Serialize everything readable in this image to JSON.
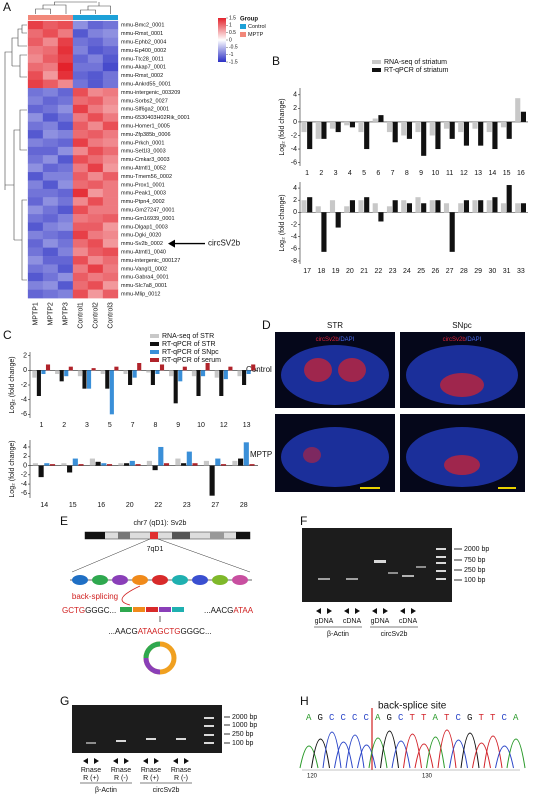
{
  "panel_labels": [
    "A",
    "B",
    "C",
    "D",
    "E",
    "F",
    "G",
    "H"
  ],
  "chart_data": [
    {
      "type": "heatmap",
      "categories": [
        "MPTP1",
        "MPTP2",
        "MPTP3",
        "Control1",
        "Control2",
        "Control3"
      ],
      "column_groups": [
        "MPTP",
        "MPTP",
        "MPTP",
        "Control",
        "Control",
        "Control"
      ],
      "rows": [
        "mmu-Bmc2_0001",
        "mmu-Rmst_0001",
        "mmu-Ephb2_0004",
        "mmu-Ep400_0002",
        "mmu-Ttc28_0011",
        "mmu-Akap7_0001",
        "mmu-Rmst_0002",
        "mmu-Ankrd55_0001",
        "mmu-intergenic_003209",
        "mmu-Sorbs2_0027",
        "mmu-Slf6ga2_0001",
        "mmu-6530403H02Rik_0001",
        "mmu-Homer1_0005",
        "mmu-Zfp385b_0006",
        "mmu-Prkch_0001",
        "mmu-Sel1l3_0003",
        "mmu-Cmkar3_0003",
        "mmu-Atmtl1_0052",
        "mmu-Tmem56_0002",
        "mmu-Prox1_0001",
        "mmu-Peak1_0003",
        "mmu-Ptpn4_0002",
        "mmu-Gm27247_0001",
        "mmu-Gm16939_0001",
        "mmu-Dlgap1_0003",
        "mmu-Dgki_0020",
        "mmu-Sv2b_0002",
        "mmu-Atmtl1_0040",
        "mmu-intergenic_000127",
        "mmu-Vangl1_0002",
        "mmu-Gabra4_0001",
        "mmu-Slc7a8_0001",
        "mmu-Mlip_0012"
      ],
      "values": [
        [
          1.3,
          1.1,
          1.2,
          -0.8,
          -1.1,
          -1.0
        ],
        [
          1.0,
          1.2,
          0.9,
          -1.2,
          -0.9,
          -0.8
        ],
        [
          1.1,
          0.8,
          1.3,
          -1.0,
          -1.1,
          -0.9
        ],
        [
          0.9,
          1.0,
          1.4,
          -0.9,
          -1.2,
          -1.1
        ],
        [
          0.8,
          1.1,
          1.3,
          -1.1,
          -0.9,
          -1.2
        ],
        [
          1.0,
          0.9,
          1.5,
          -1.0,
          -1.0,
          -1.3
        ],
        [
          1.2,
          0.7,
          1.4,
          -1.1,
          -1.2,
          -1.0
        ],
        [
          1.3,
          1.1,
          0.8,
          -1.0,
          -1.2,
          -1.0
        ],
        [
          -1.0,
          -0.9,
          -1.1,
          1.2,
          0.8,
          0.9
        ],
        [
          -0.9,
          -1.1,
          -1.0,
          1.0,
          1.1,
          0.8
        ],
        [
          -1.1,
          -1.0,
          -0.8,
          1.3,
          0.9,
          0.7
        ],
        [
          -0.8,
          -1.2,
          -1.0,
          0.9,
          1.2,
          0.9
        ],
        [
          -1.0,
          -0.9,
          -1.2,
          1.1,
          0.8,
          1.2
        ],
        [
          -1.2,
          -0.8,
          -0.9,
          1.0,
          1.1,
          0.9
        ],
        [
          -0.9,
          -1.0,
          -1.1,
          1.3,
          0.9,
          0.8
        ],
        [
          -1.1,
          -1.1,
          -0.8,
          0.8,
          1.2,
          1.0
        ],
        [
          -1.0,
          -0.8,
          -1.2,
          1.2,
          1.0,
          0.8
        ],
        [
          -0.8,
          -1.1,
          -1.0,
          0.9,
          1.3,
          0.7
        ],
        [
          -1.2,
          -0.9,
          -0.9,
          1.1,
          0.8,
          1.1
        ],
        [
          -0.9,
          -1.2,
          -0.8,
          1.0,
          1.1,
          0.9
        ],
        [
          -1.0,
          -1.0,
          -1.1,
          1.4,
          0.7,
          0.9
        ],
        [
          -1.1,
          -0.8,
          -1.0,
          0.8,
          1.2,
          0.9
        ],
        [
          -0.8,
          -1.0,
          -1.2,
          1.2,
          0.9,
          0.9
        ],
        [
          -1.0,
          -1.1,
          -0.9,
          0.9,
          1.0,
          1.1
        ],
        [
          -1.2,
          -0.9,
          -0.8,
          1.1,
          1.1,
          0.7
        ],
        [
          -0.9,
          -1.0,
          -1.1,
          1.3,
          0.9,
          0.8
        ],
        [
          -1.1,
          -0.8,
          -1.0,
          1.0,
          1.2,
          0.7
        ],
        [
          -1.0,
          -1.2,
          -0.9,
          0.8,
          1.1,
          1.2
        ],
        [
          -0.8,
          -1.1,
          -1.1,
          1.2,
          0.8,
          1.0
        ],
        [
          -1.0,
          -0.9,
          -1.2,
          0.9,
          1.3,
          0.9
        ],
        [
          -1.2,
          -1.0,
          -0.8,
          1.1,
          0.9,
          1.0
        ],
        [
          -0.9,
          -0.8,
          -1.2,
          1.0,
          1.2,
          0.7
        ],
        [
          -1.1,
          -1.0,
          -0.9,
          1.2,
          0.7,
          1.1
        ]
      ],
      "colorbar": {
        "lim": [
          -1.5,
          1.5
        ],
        "ticks": [
          1.5,
          1,
          0.5,
          0,
          -0.5,
          -1,
          -1.5
        ],
        "colors": [
          "#2b2fc4",
          "#ffffff",
          "#e3222b"
        ]
      },
      "legend_title": "Group",
      "groups": [
        {
          "name": "Control",
          "color": "#1da1d8"
        },
        {
          "name": "MPTP",
          "color": "#f2887a"
        }
      ],
      "annotation": {
        "text": "circSV2b",
        "row": "mmu-Sv2b_0002"
      }
    },
    {
      "type": "bar",
      "ylabel": "Log₂ (fold change)",
      "categories": [
        "1",
        "2",
        "3",
        "4",
        "5",
        "6",
        "7",
        "8",
        "9",
        "10",
        "11",
        "12",
        "13",
        "14",
        "15",
        "16"
      ],
      "series": [
        {
          "name": "RNA-seq of striatum",
          "color": "#c8c8c8",
          "values": [
            -1.5,
            -2.5,
            -1,
            -0.5,
            -1.5,
            0.5,
            -1.5,
            -2,
            -1.5,
            -2,
            -1,
            -1.5,
            -1,
            -1.5,
            -0.8,
            3.5
          ]
        },
        {
          "name": "RT-qPCR of striatum",
          "color": "#111111",
          "values": [
            -4,
            -2.5,
            -1.5,
            -0.8,
            -4,
            1,
            -3,
            -2.5,
            -5,
            -4,
            -2.5,
            -3.5,
            -3.5,
            -4,
            -2.5,
            1.5
          ]
        }
      ],
      "ylim": [
        -6.5,
        5
      ],
      "yticks": [
        4,
        2,
        0,
        -2,
        -4,
        -6
      ]
    },
    {
      "type": "bar",
      "ylabel": "Log₂ (fold change)",
      "categories": [
        "17",
        "18",
        "19",
        "20",
        "21",
        "22",
        "23",
        "24",
        "25",
        "26",
        "27",
        "28",
        "29",
        "30",
        "31",
        "33"
      ],
      "series": [
        {
          "color": "#c8c8c8",
          "values": [
            2,
            1,
            2,
            1,
            2,
            1.5,
            1,
            2,
            2.5,
            2,
            1.5,
            1.5,
            2,
            2,
            1.5,
            1.5
          ]
        },
        {
          "color": "#111111",
          "values": [
            2.5,
            -6.5,
            -2.5,
            2,
            2.5,
            -1.5,
            2,
            1.5,
            1.5,
            2,
            -6.5,
            2,
            2,
            2.5,
            4.5,
            1.5
          ]
        }
      ],
      "ylim": [
        -8.5,
        5
      ],
      "yticks": [
        4,
        2,
        0,
        -2,
        -4,
        -6,
        -8
      ]
    },
    {
      "type": "bar",
      "ylabel": "Log₂ (fold change)",
      "categories": [
        "1",
        "2",
        "3",
        "5",
        "7",
        "8",
        "9",
        "10",
        "12",
        "13"
      ],
      "series": [
        {
          "name": "RNA-seq of STR",
          "color": "#c8c8c8",
          "values": [
            -1,
            -0.5,
            -0.8,
            -0.5,
            -0.5,
            -0.3,
            -0.8,
            -0.8,
            -1,
            -0.8
          ]
        },
        {
          "name": "RT-qPCR of STR",
          "color": "#111111",
          "values": [
            -3.5,
            -1.5,
            -2.5,
            -2.5,
            -2,
            -2,
            -4.5,
            -3.5,
            -3.5,
            -2
          ]
        },
        {
          "name": "RT-qPCR of SNpc",
          "color": "#3a8fd8",
          "values": [
            -0.5,
            -0.8,
            -2.5,
            -6,
            -1,
            -0.5,
            -1.5,
            -0.8,
            -1.2,
            -0.5
          ]
        },
        {
          "name": "RT-qPCR of serum",
          "color": "#b0232a",
          "values": [
            0.8,
            0.5,
            0.3,
            0.5,
            1,
            0.8,
            0.5,
            1,
            0.5,
            0.8
          ]
        }
      ],
      "ylim": [
        -6.5,
        2.5
      ],
      "yticks": [
        2,
        0,
        -2,
        -4,
        -6
      ]
    },
    {
      "type": "bar",
      "ylabel": "Log₂ (fold change)",
      "categories": [
        "14",
        "15",
        "16",
        "20",
        "22",
        "23",
        "27",
        "28"
      ],
      "series": [
        {
          "color": "#c8c8c8",
          "values": [
            0.5,
            0.5,
            1.5,
            0.5,
            1,
            1.5,
            1,
            1
          ]
        },
        {
          "color": "#111111",
          "values": [
            -2.5,
            -1.5,
            0.8,
            0.5,
            -1,
            0.5,
            -6.5,
            1.5
          ]
        },
        {
          "color": "#3a8fd8",
          "values": [
            0.5,
            1.5,
            0.5,
            1,
            4,
            3,
            1.5,
            5
          ]
        },
        {
          "color": "#b0232a",
          "values": [
            0.3,
            0.3,
            0.3,
            0.3,
            0.5,
            0.5,
            0.3,
            0.3
          ]
        }
      ],
      "ylim": [
        -7,
        5.5
      ],
      "yticks": [
        4,
        2,
        0,
        -2,
        -4,
        -6
      ]
    }
  ],
  "figure_d": {
    "columns": [
      "STR",
      "SNpc"
    ],
    "rows": [
      "Control",
      "MPTP"
    ],
    "stain": [
      "circSv2b",
      "/DAPI"
    ]
  },
  "figure_e": {
    "locus": "chr7 (qD1): Sv2b",
    "band": "7qD1",
    "process": "back-splicing",
    "left_seq": [
      "GCTG",
      "GGGC..."
    ],
    "right_seq": [
      "...AACG",
      "ATAA"
    ],
    "junction_seq": [
      "...AACG",
      "ATAAGCTG",
      "GGGC..."
    ]
  },
  "figure_f": {
    "markers": [
      "2000 bp",
      "750 bp",
      "250 bp",
      "100 bp"
    ],
    "lanes": [
      "gDNA",
      "cDNA",
      "gDNA",
      "cDNA"
    ],
    "groups": [
      "β-Actin",
      "circSv2b"
    ]
  },
  "figure_g": {
    "markers": [
      "2000 bp",
      "1000 bp",
      "250 bp",
      "100 bp"
    ],
    "lanes": [
      [
        "Rnase",
        "R (+)"
      ],
      [
        "Rnase",
        "R (-)"
      ],
      [
        "Rnase",
        "R (+)"
      ],
      [
        "Rnase",
        "R (-)"
      ]
    ],
    "groups": [
      "β-Actin",
      "circSv2b"
    ]
  },
  "figure_h": {
    "title": "back-splice site",
    "bases": [
      "A",
      "G",
      "C",
      "C",
      "C",
      "C",
      "A",
      "G",
      "C",
      "T",
      "T",
      "A",
      "T",
      "C",
      "G",
      "T",
      "T",
      "C",
      "A"
    ],
    "base_colors": {
      "A": "#2a9a2a",
      "G": "#111111",
      "C": "#2b46c8",
      "T": "#d2232a"
    },
    "ticks": [
      "120",
      "130"
    ]
  }
}
